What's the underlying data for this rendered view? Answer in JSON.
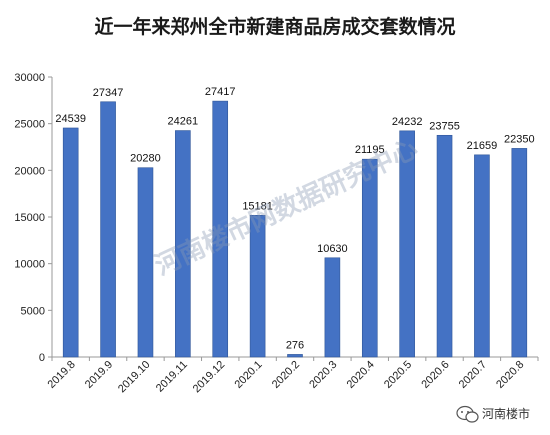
{
  "chart_data": {
    "type": "bar",
    "title": "近一年来郑州全市新建商品房成交套数情况",
    "categories": [
      "2019.8",
      "2019.9",
      "2019.10",
      "2019.11",
      "2019.12",
      "2020.1",
      "2020.2",
      "2020.3",
      "2020.4",
      "2020.5",
      "2020.6",
      "2020.7",
      "2020.8"
    ],
    "values": [
      24539,
      27347,
      20280,
      24261,
      27417,
      15181,
      276,
      10630,
      21195,
      24232,
      23755,
      21659,
      22350
    ],
    "value_labels": [
      "24539",
      "27347",
      "20280",
      "24261",
      "27417",
      "15181",
      "276",
      "10630",
      "21195",
      "24232",
      "23755",
      "21659",
      "22350"
    ],
    "ylim": [
      0,
      30000
    ],
    "yticks": [
      "0",
      "5000",
      "10000",
      "15000",
      "20000",
      "25000",
      "30000"
    ],
    "xlabel": "",
    "ylabel": "",
    "grid": false,
    "legend": "none",
    "bar_color": "#4472c4",
    "bar_edge_color": "#2f5597"
  },
  "watermark": "河南楼市网数据研究中心",
  "logo": {
    "icon": "wechat-icon",
    "text": "河南楼市"
  }
}
